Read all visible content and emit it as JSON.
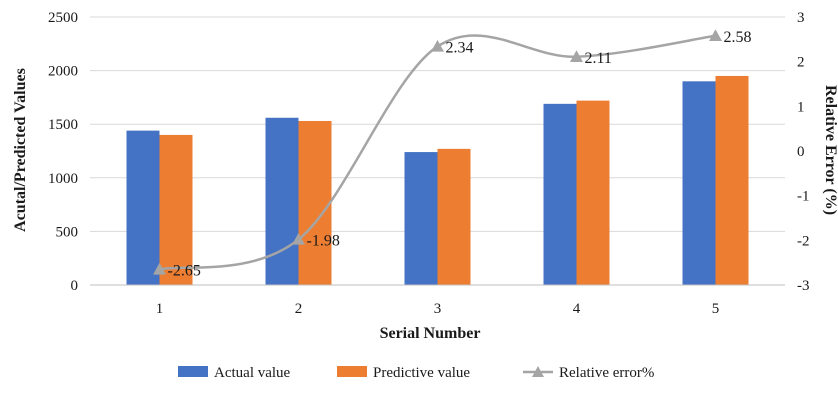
{
  "chart_data": {
    "type": "bar",
    "title": "",
    "xlabel": "Serial Number",
    "ylabel": "Acutal/Predicted Values",
    "y2label": "Relative Error (%)",
    "categories": [
      "1",
      "2",
      "3",
      "4",
      "5"
    ],
    "ylim": [
      0,
      2500
    ],
    "yticks": [
      0,
      500,
      1000,
      1500,
      2000,
      2500
    ],
    "y2lim": [
      -3,
      3
    ],
    "y2ticks": [
      -3,
      -2,
      -1,
      0,
      1,
      2,
      3
    ],
    "grid": true,
    "legend_position": "bottom",
    "series": [
      {
        "name": "Actual value",
        "type": "bar",
        "axis": "left",
        "color": "#4472C4",
        "values": [
          1440,
          1560,
          1240,
          1690,
          1900
        ]
      },
      {
        "name": "Predictive value",
        "type": "bar",
        "axis": "left",
        "color": "#ED7D31",
        "values": [
          1400,
          1530,
          1270,
          1720,
          1950
        ]
      },
      {
        "name": "Relative error%",
        "type": "line",
        "axis": "right",
        "color": "#A5A5A5",
        "marker": "triangle",
        "smooth": true,
        "values": [
          -2.65,
          -1.98,
          2.34,
          2.11,
          2.58
        ],
        "data_labels": [
          "-2.65",
          "-1.98",
          "2.34",
          "2.11",
          "2.58"
        ]
      }
    ]
  }
}
